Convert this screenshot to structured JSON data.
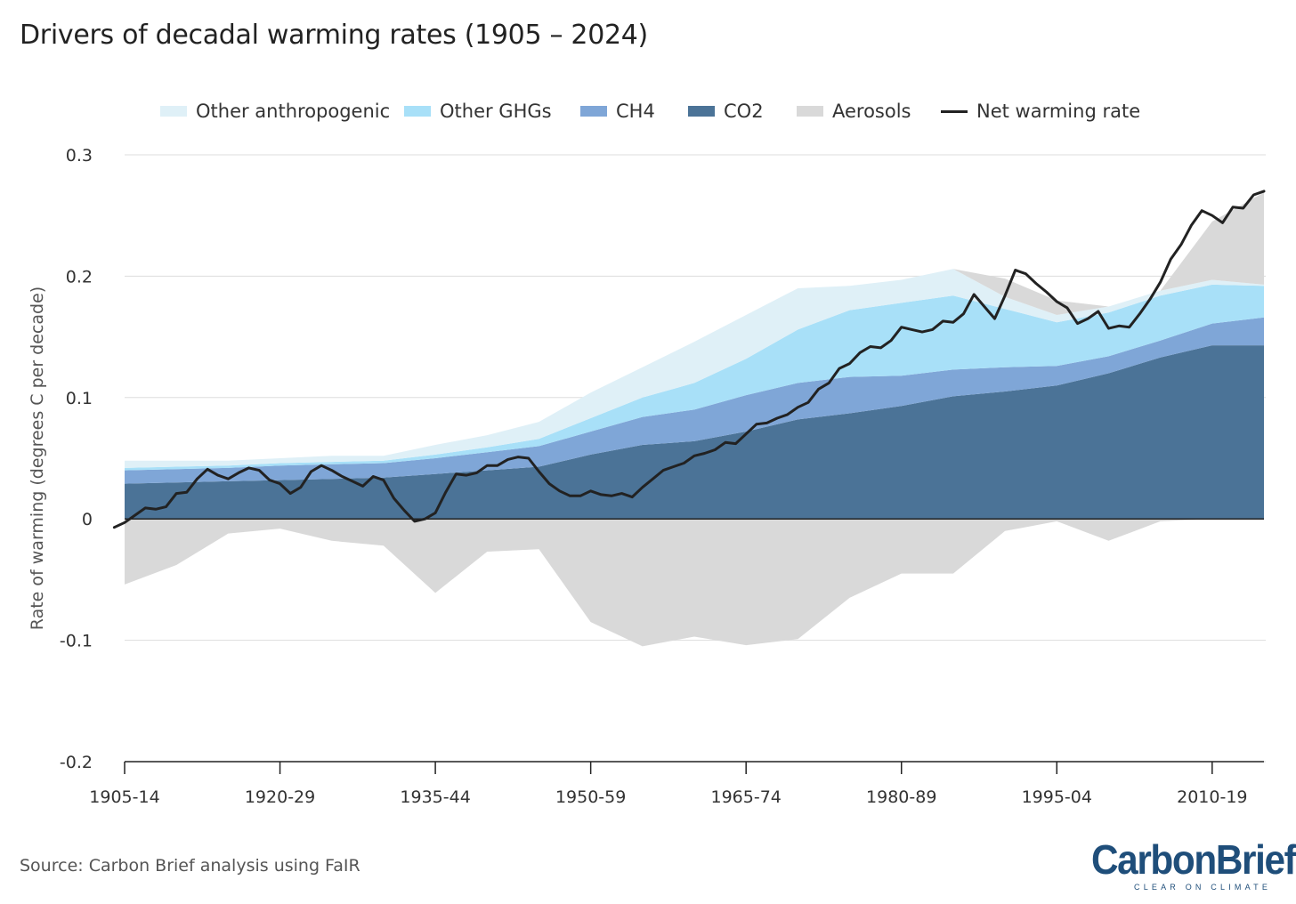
{
  "title": "Drivers of decadal warming rates (1905 – 2024)",
  "source": "Source: Carbon Brief analysis using FaIR",
  "brand": {
    "name": "CarbonBrief",
    "tagline": "CLEAR ON CLIMATE"
  },
  "colors": {
    "other_anthropogenic": "#dff0f7",
    "other_ghgs": "#a8e0f8",
    "ch4": "#7fa6d7",
    "co2": "#4b7397",
    "aerosols": "#d9d9d9",
    "net": "#222222",
    "grid": "#dddddd",
    "brand": "#1f4e7a"
  },
  "legend": [
    {
      "key": "other_anthropogenic",
      "label": "Other anthropogenic",
      "kind": "area"
    },
    {
      "key": "other_ghgs",
      "label": "Other GHGs",
      "kind": "area"
    },
    {
      "key": "ch4",
      "label": "CH4",
      "kind": "area"
    },
    {
      "key": "co2",
      "label": "CO2",
      "kind": "area"
    },
    {
      "key": "aerosols",
      "label": "Aerosols",
      "kind": "area"
    },
    {
      "key": "net",
      "label": "Net warming rate",
      "kind": "line"
    }
  ],
  "chart_data": {
    "type": "area",
    "title": "Drivers of decadal warming rates (1905 – 2024)",
    "xlabel": "",
    "ylabel": "Rate of warming (degrees C per decade)",
    "x_unit": "first year of decade",
    "xlim": [
      1905,
      2015
    ],
    "ylim": [
      -0.2,
      0.3
    ],
    "yticks": [
      -0.2,
      -0.1,
      0,
      0.1,
      0.2,
      0.3
    ],
    "ytick_labels": [
      "-0.2",
      "-0.1",
      "0",
      "0.1",
      "0.2",
      "0.3"
    ],
    "xticks": [
      1905,
      1920,
      1935,
      1950,
      1965,
      1980,
      1995,
      2010
    ],
    "xtick_labels": [
      "1905-14",
      "1920-29",
      "1935-44",
      "1950-59",
      "1965-74",
      "1980-89",
      "1995-04",
      "2010-19"
    ],
    "grid": true,
    "legend_position": "top",
    "x": [
      1905,
      1910,
      1915,
      1920,
      1925,
      1930,
      1935,
      1940,
      1945,
      1950,
      1955,
      1960,
      1965,
      1970,
      1975,
      1980,
      1985,
      1990,
      1995,
      2000,
      2005,
      2010,
      2015
    ],
    "series": [
      {
        "name": "CO2",
        "stack": "positive",
        "color_key": "co2",
        "values": [
          0.029,
          0.03,
          0.031,
          0.032,
          0.033,
          0.034,
          0.037,
          0.04,
          0.043,
          0.053,
          0.061,
          0.064,
          0.072,
          0.082,
          0.087,
          0.093,
          0.101,
          0.105,
          0.11,
          0.12,
          0.133,
          0.143,
          0.143
        ]
      },
      {
        "name": "CH4",
        "stack": "positive",
        "color_key": "ch4",
        "values": [
          0.011,
          0.011,
          0.011,
          0.012,
          0.012,
          0.012,
          0.013,
          0.015,
          0.017,
          0.019,
          0.023,
          0.026,
          0.03,
          0.03,
          0.03,
          0.025,
          0.022,
          0.02,
          0.016,
          0.014,
          0.014,
          0.018,
          0.023
        ]
      },
      {
        "name": "Other GHGs",
        "stack": "positive",
        "color_key": "other_ghgs",
        "values": [
          0.002,
          0.002,
          0.002,
          0.002,
          0.002,
          0.002,
          0.003,
          0.004,
          0.006,
          0.011,
          0.016,
          0.022,
          0.03,
          0.044,
          0.055,
          0.06,
          0.061,
          0.048,
          0.036,
          0.036,
          0.037,
          0.032,
          0.026
        ]
      },
      {
        "name": "Other anthropogenic",
        "stack": "positive",
        "color_key": "other_anthropogenic",
        "values": [
          0.006,
          0.005,
          0.004,
          0.004,
          0.005,
          0.004,
          0.008,
          0.01,
          0.014,
          0.021,
          0.025,
          0.034,
          0.036,
          0.034,
          0.02,
          0.019,
          0.022,
          0.01,
          0.006,
          0.005,
          0.004,
          0.004,
          0.001
        ]
      },
      {
        "name": "Aerosols",
        "stack": "negative",
        "color_key": "aerosols",
        "values": [
          -0.054,
          -0.038,
          -0.012,
          -0.008,
          -0.018,
          -0.022,
          -0.061,
          -0.027,
          -0.025,
          -0.085,
          -0.105,
          -0.097,
          -0.104,
          -0.099,
          -0.065,
          -0.045,
          -0.045,
          -0.01,
          -0.002,
          -0.018,
          -0.002,
          0.0,
          0.0
        ]
      },
      {
        "name": "Aerosols (positive)",
        "stack": "positive",
        "color_key": "aerosols",
        "values": [
          0,
          0,
          0,
          0,
          0,
          0,
          0,
          0,
          0,
          0,
          0,
          0,
          0,
          0,
          0,
          0,
          0,
          0.015,
          0.012,
          0.0,
          0.0,
          0.048,
          0.076
        ]
      },
      {
        "name": "Net warming rate",
        "kind": "line",
        "color_key": "net",
        "x": [
          1904,
          1905,
          1906,
          1907,
          1908,
          1909,
          1910,
          1911,
          1912,
          1913,
          1914,
          1915,
          1916,
          1917,
          1918,
          1919,
          1920,
          1921,
          1922,
          1923,
          1924,
          1925,
          1926,
          1927,
          1928,
          1929,
          1930,
          1931,
          1932,
          1933,
          1934,
          1935,
          1936,
          1937,
          1938,
          1939,
          1940,
          1941,
          1942,
          1943,
          1944,
          1945,
          1946,
          1947,
          1948,
          1949,
          1950,
          1951,
          1952,
          1953,
          1954,
          1955,
          1956,
          1957,
          1958,
          1959,
          1960,
          1961,
          1962,
          1963,
          1964,
          1965,
          1966,
          1967,
          1968,
          1969,
          1970,
          1971,
          1972,
          1973,
          1974,
          1975,
          1976,
          1977,
          1978,
          1979,
          1980,
          1981,
          1982,
          1983,
          1984,
          1985,
          1986,
          1987,
          1988,
          1989,
          1990,
          1991,
          1992,
          1993,
          1994,
          1995,
          1996,
          1997,
          1998,
          1999,
          2000,
          2001,
          2002,
          2003,
          2004,
          2005,
          2006,
          2007,
          2008,
          2009,
          2010,
          2011,
          2012,
          2013,
          2014,
          2015
        ],
        "values": [
          -0.007,
          -0.003,
          0.003,
          0.009,
          0.008,
          0.01,
          0.021,
          0.022,
          0.033,
          0.041,
          0.036,
          0.033,
          0.038,
          0.042,
          0.04,
          0.032,
          0.029,
          0.021,
          0.026,
          0.039,
          0.044,
          0.04,
          0.035,
          0.031,
          0.027,
          0.035,
          0.032,
          0.017,
          0.007,
          -0.002,
          0.0,
          0.005,
          0.022,
          0.037,
          0.036,
          0.038,
          0.044,
          0.044,
          0.049,
          0.051,
          0.05,
          0.039,
          0.029,
          0.023,
          0.019,
          0.019,
          0.023,
          0.02,
          0.019,
          0.021,
          0.018,
          0.026,
          0.033,
          0.04,
          0.043,
          0.046,
          0.052,
          0.054,
          0.057,
          0.063,
          0.062,
          0.07,
          0.078,
          0.079,
          0.083,
          0.086,
          0.092,
          0.096,
          0.107,
          0.112,
          0.124,
          0.128,
          0.137,
          0.142,
          0.141,
          0.147,
          0.158,
          0.156,
          0.154,
          0.156,
          0.163,
          0.162,
          0.169,
          0.185,
          0.175,
          0.165,
          0.184,
          0.205,
          0.202,
          0.194,
          0.187,
          0.179,
          0.174,
          0.161,
          0.165,
          0.171,
          0.157,
          0.159,
          0.158,
          0.169,
          0.181,
          0.195,
          0.214,
          0.226,
          0.242,
          0.254,
          0.25,
          0.244,
          0.257,
          0.256,
          0.267,
          0.27
        ]
      }
    ]
  }
}
